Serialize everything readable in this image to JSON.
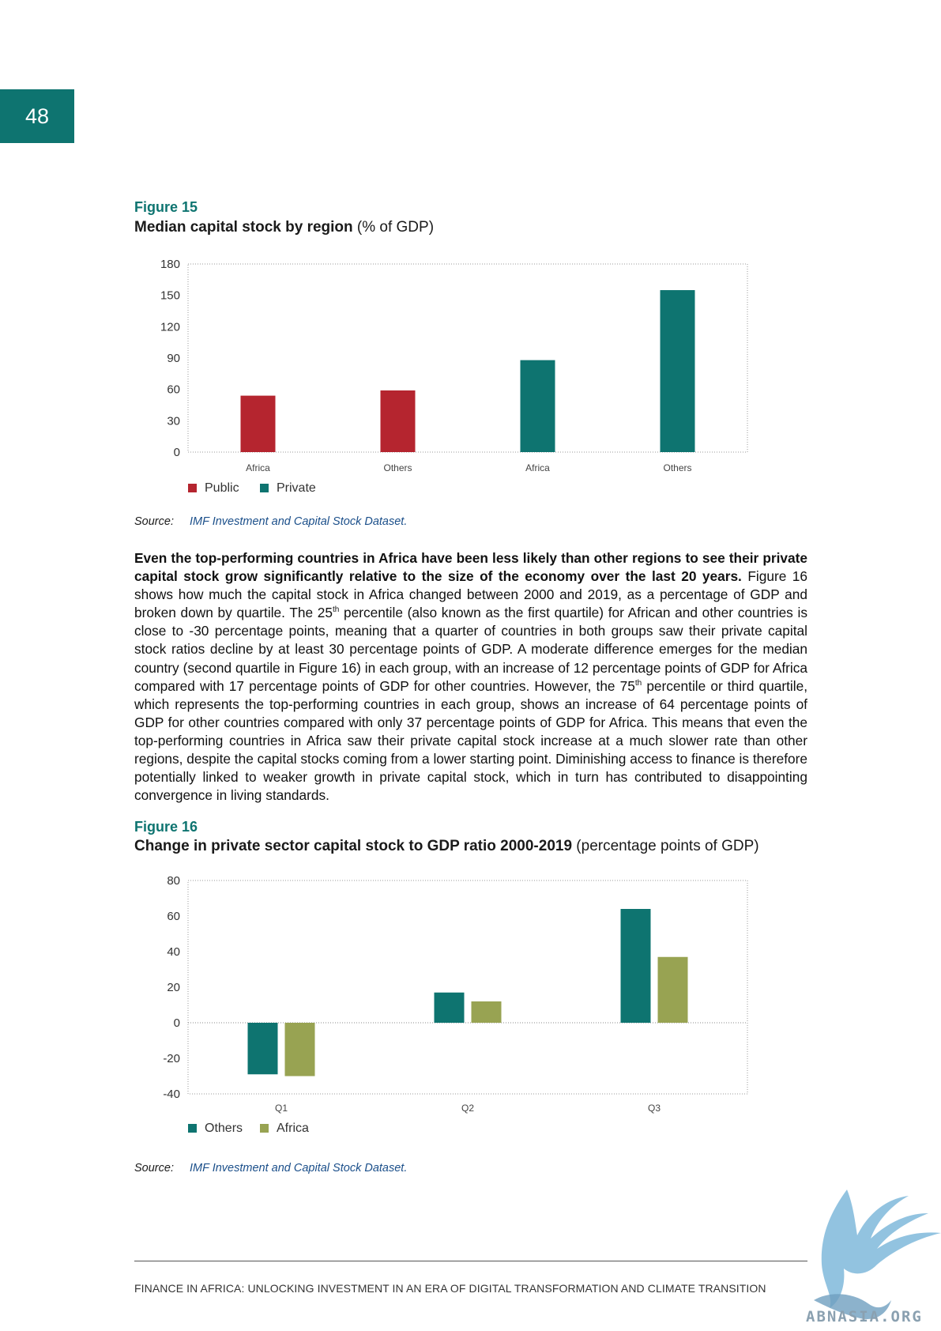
{
  "page_number": "48",
  "figure15": {
    "label": "Figure 15",
    "title_bold": "Median capital stock by region",
    "title_rest": " (% of GDP)",
    "source_label": "Source:",
    "source_text": "IMF Investment and Capital Stock Dataset."
  },
  "figure16": {
    "label": "Figure 16",
    "title_bold": "Change in private sector capital stock to GDP ratio 2000-2019",
    "title_rest": " (percentage points of GDP)",
    "source_label": "Source:",
    "source_text": "IMF Investment and Capital Stock Dataset."
  },
  "body": {
    "bold_lead": "Even the top-performing countries in Africa have been less likely than other regions to see their private capital stock grow significantly relative to the size of the economy over the last 20 years.",
    "part1": " Figure 16 shows how much the capital stock in Africa changed between 2000 and 2019, as a percentage of GDP and broken down by quartile. The 25",
    "sup1": "th",
    "part2": " percentile (also known as the first quartile) for African and other countries is close to -30 percentage points, meaning that a quarter of countries in both groups saw their private capital stock ratios decline by at least 30 percentage points of GDP. A moderate difference emerges for the median country (second quartile in Figure 16) in each group, with an increase of 12 percentage points of GDP for Africa compared with 17 percentage points of GDP for other countries. However, the 75",
    "sup2": "th",
    "part3": " percentile or third quartile, which represents the top-performing countries in each group, shows an increase of 64 percentage points of GDP for other countries compared with only 37 percentage points of GDP for Africa. This means that even the top-performing countries in Africa saw their private capital stock increase at a much slower rate than other regions, despite the capital stocks coming from a lower starting point. Diminishing access to finance is therefore potentially linked to weaker growth in private capital stock, which in turn has contributed to disappointing convergence in living standards."
  },
  "footer": "FINANCE IN AFRICA: UNLOCKING INVESTMENT IN AN ERA OF DIGITAL TRANSFORMATION AND CLIMATE TRANSITION",
  "watermark": "ABNASIA.ORG",
  "colors": {
    "teal": "#0e7470",
    "red": "#b5252f",
    "olive": "#98a352"
  },
  "chart_data": [
    {
      "type": "bar",
      "categories": [
        "Africa",
        "Others",
        "Africa",
        "Others"
      ],
      "series": [
        {
          "name": "Public",
          "color": "#b5252f",
          "values": [
            54,
            59,
            null,
            null
          ]
        },
        {
          "name": "Private",
          "color": "#0e7470",
          "values": [
            null,
            null,
            88,
            155
          ]
        }
      ],
      "ylim": [
        0,
        180
      ],
      "yticks": [
        0,
        30,
        60,
        90,
        120,
        150,
        180
      ],
      "legend": "bottom-left",
      "grid": false
    },
    {
      "type": "bar",
      "categories": [
        "Q1",
        "Q2",
        "Q3"
      ],
      "series": [
        {
          "name": "Others",
          "color": "#0e7470",
          "values": [
            -29,
            17,
            64
          ]
        },
        {
          "name": "Africa",
          "color": "#98a352",
          "values": [
            -30,
            12,
            37
          ]
        }
      ],
      "ylim": [
        -40,
        80
      ],
      "yticks": [
        -40,
        -20,
        0,
        20,
        40,
        60,
        80
      ],
      "legend": "bottom-left",
      "grid": false
    }
  ]
}
